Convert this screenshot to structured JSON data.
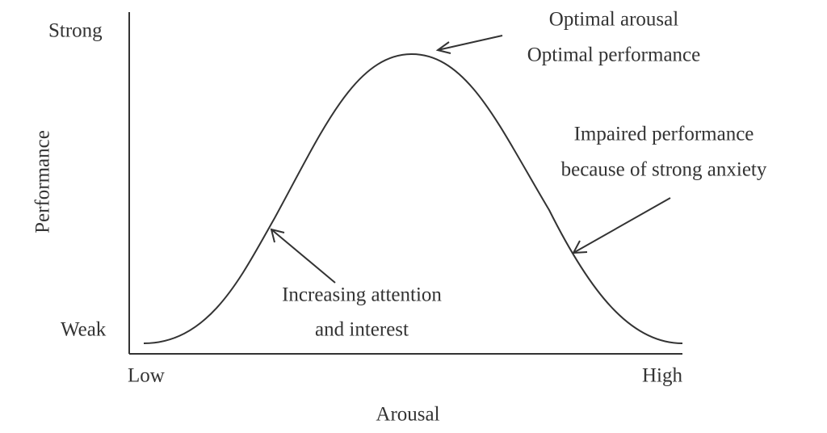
{
  "y_axis": {
    "label": "Performance",
    "top": "Strong",
    "bottom": "Weak"
  },
  "x_axis": {
    "label": "Arousal",
    "left": "Low",
    "right": "High"
  },
  "annotations": {
    "peak": [
      "Optimal arousal",
      "Optimal performance"
    ],
    "falling": [
      "Impaired performance",
      "because of strong anxiety"
    ],
    "rising": [
      "Increasing attention",
      "and interest"
    ]
  }
}
